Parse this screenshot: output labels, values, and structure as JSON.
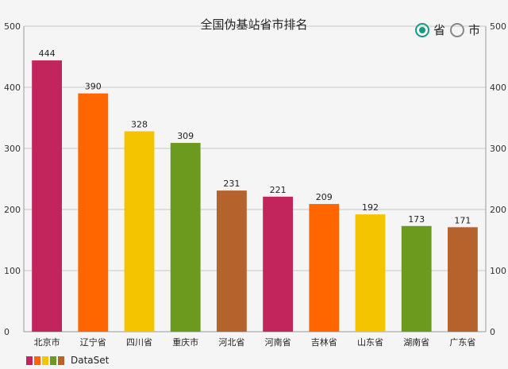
{
  "header": {
    "title": "全国伪基站省市排名"
  },
  "toggle": {
    "options": [
      {
        "label": "省",
        "selected": true
      },
      {
        "label": "市",
        "selected": false
      }
    ],
    "accent_color": "#159a86"
  },
  "legend": {
    "label": "DataSet",
    "colors": [
      "#c2255c",
      "#ff6600",
      "#f5c400",
      "#6b9a1e",
      "#b5622c"
    ]
  },
  "chart_data": {
    "type": "bar",
    "title": "全国伪基站省市排名",
    "categories": [
      "北京市",
      "辽宁省",
      "四川省",
      "重庆市",
      "河北省",
      "河南省",
      "吉林省",
      "山东省",
      "湖南省",
      "广东省"
    ],
    "series": [
      {
        "name": "DataSet",
        "values": [
          444,
          390,
          328,
          309,
          231,
          221,
          209,
          192,
          173,
          171
        ]
      }
    ],
    "bar_colors": [
      "#c2255c",
      "#ff6600",
      "#f5c400",
      "#6b9a1e",
      "#b5622c",
      "#c2255c",
      "#ff6600",
      "#f5c400",
      "#6b9a1e",
      "#b5622c"
    ],
    "ylim": [
      0,
      500
    ],
    "yticks": [
      0,
      100,
      200,
      300,
      400,
      500
    ],
    "dual_y_axis": true,
    "grid": true,
    "legend_position": "bottom-left",
    "xlabel": "",
    "ylabel": ""
  }
}
